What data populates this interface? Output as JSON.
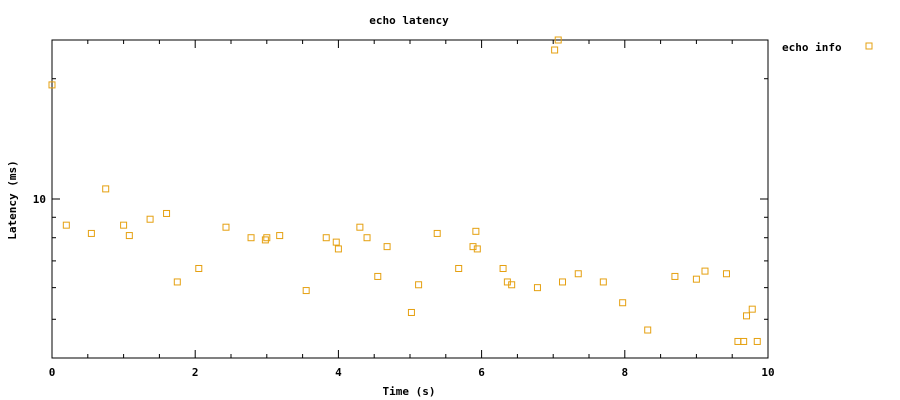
{
  "chart_data": {
    "type": "scatter",
    "title": "echo latency",
    "xlabel": "Time (s)",
    "ylabel": "Latency (ms)",
    "xlim": [
      0,
      10
    ],
    "ylim": [
      4,
      25
    ],
    "yscale": "log",
    "x_ticks": [
      "0",
      "2",
      "4",
      "6",
      "8",
      "10"
    ],
    "y_ticks": [
      "10"
    ],
    "grid": false,
    "legend_position": "top-right outside",
    "series": [
      {
        "name": "echo info",
        "color": "#e5a010",
        "marker": "open-square",
        "points": [
          [
            0.0,
            19.3
          ],
          [
            0.2,
            8.6
          ],
          [
            0.55,
            8.2
          ],
          [
            0.75,
            10.6
          ],
          [
            1.0,
            8.6
          ],
          [
            1.08,
            8.1
          ],
          [
            1.37,
            8.9
          ],
          [
            1.6,
            9.2
          ],
          [
            1.75,
            6.2
          ],
          [
            2.05,
            6.7
          ],
          [
            2.43,
            8.5
          ],
          [
            2.78,
            8.0
          ],
          [
            2.98,
            7.9
          ],
          [
            3.0,
            8.0
          ],
          [
            3.18,
            8.1
          ],
          [
            3.55,
            5.9
          ],
          [
            3.83,
            8.0
          ],
          [
            3.97,
            7.8
          ],
          [
            4.0,
            7.5
          ],
          [
            4.3,
            8.5
          ],
          [
            4.4,
            8.0
          ],
          [
            4.55,
            6.4
          ],
          [
            4.68,
            7.6
          ],
          [
            5.02,
            5.2
          ],
          [
            5.12,
            6.1
          ],
          [
            5.38,
            8.2
          ],
          [
            5.68,
            6.7
          ],
          [
            5.88,
            7.6
          ],
          [
            5.92,
            8.3
          ],
          [
            5.94,
            7.5
          ],
          [
            6.3,
            6.7
          ],
          [
            6.36,
            6.2
          ],
          [
            6.42,
            6.1
          ],
          [
            6.78,
            6.0
          ],
          [
            7.02,
            23.6
          ],
          [
            7.07,
            25.0
          ],
          [
            7.13,
            6.2
          ],
          [
            7.35,
            6.5
          ],
          [
            7.7,
            6.2
          ],
          [
            7.97,
            5.5
          ],
          [
            8.32,
            4.7
          ],
          [
            8.7,
            6.4
          ],
          [
            9.0,
            6.3
          ],
          [
            9.12,
            6.6
          ],
          [
            9.42,
            6.5
          ],
          [
            9.58,
            4.4
          ],
          [
            9.66,
            4.4
          ],
          [
            9.7,
            5.1
          ],
          [
            9.78,
            5.3
          ],
          [
            9.85,
            4.4
          ]
        ]
      }
    ]
  }
}
